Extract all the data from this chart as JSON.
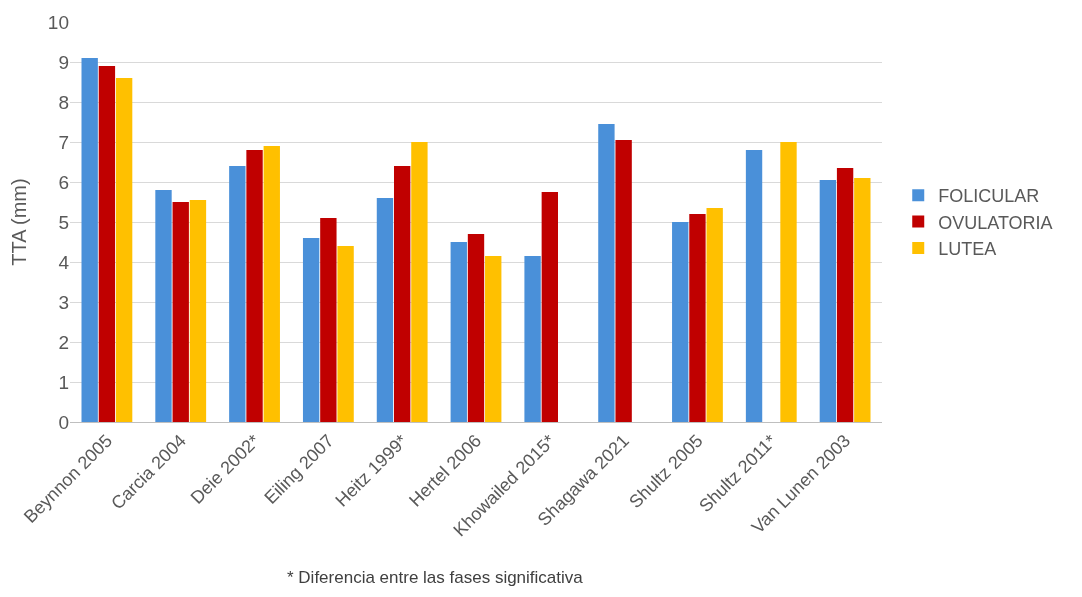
{
  "chart_data": {
    "type": "bar",
    "ylabel": "TTA (mm)",
    "categories": [
      "Beynnon 2005",
      "Carcia 2004",
      "Deie 2002*",
      "Eiling 2007",
      "Heitz 1999*",
      "Hertel 2006",
      "Khowailed 2015*",
      "Shagawa 2021",
      "Shultz 2005",
      "Shultz 2011*",
      "Van Lunen 2003"
    ],
    "series": [
      {
        "name": "FOLICULAR",
        "color": "#4a90d9",
        "values": [
          9.1,
          5.8,
          6.4,
          4.6,
          5.6,
          4.5,
          4.15,
          7.45,
          5.0,
          6.8,
          6.05
        ]
      },
      {
        "name": "OVULATORIA",
        "color": "#c00000",
        "values": [
          8.9,
          5.5,
          6.8,
          5.1,
          6.4,
          4.7,
          5.75,
          7.05,
          5.2,
          null,
          6.35
        ]
      },
      {
        "name": "LUTEA",
        "color": "#ffc000",
        "values": [
          8.6,
          5.55,
          6.9,
          4.4,
          7.0,
          4.15,
          null,
          null,
          5.35,
          7.0,
          6.1
        ]
      }
    ],
    "ylim": [
      0,
      10
    ],
    "yticks": [
      0,
      1,
      2,
      3,
      4,
      5,
      6,
      7,
      8,
      9,
      10
    ],
    "grid": "y",
    "legend": "right",
    "annotations": [
      "* Diferencia entre las fases significativa"
    ]
  }
}
